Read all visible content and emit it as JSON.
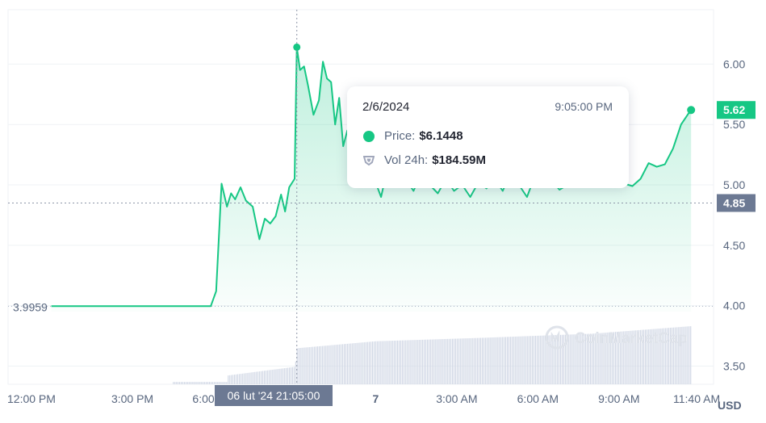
{
  "chart_data": {
    "type": "area",
    "currency_label": "USD",
    "y_ticks": [
      "3.50",
      "4.00",
      "4.50",
      "5.00",
      "5.50",
      "6.00"
    ],
    "y_tick_values": [
      3.5,
      4.0,
      4.5,
      5.0,
      5.5,
      6.0
    ],
    "ylim": [
      3.35,
      6.45
    ],
    "x_ticks": [
      "12:00 PM",
      "3:00 PM",
      "6:00 PM",
      "7",
      "3:00 AM",
      "6:00 AM",
      "9:00 AM",
      "11:40 AM"
    ],
    "x_tick_hours": [
      12,
      15,
      18,
      24,
      27,
      30,
      33,
      35.67
    ],
    "xlim_hours": [
      10.4,
      36.5
    ],
    "open_price_label": "3.9959",
    "open_price": 3.9959,
    "current_price_label": "5.62",
    "current_price": 5.62,
    "crosshair_price_label": "4.85",
    "crosshair_price": 4.85,
    "crosshair_time_label": "06 lut '24   21:05:00",
    "crosshair_hour": 21.083,
    "price_series": {
      "name": "Price",
      "x_hours": [
        12.0,
        17.9,
        18.1,
        18.3,
        18.5,
        18.65,
        18.8,
        19.0,
        19.2,
        19.45,
        19.7,
        19.9,
        20.1,
        20.3,
        20.5,
        20.65,
        20.8,
        21.0,
        21.083,
        21.2,
        21.35,
        21.5,
        21.7,
        21.9,
        22.05,
        22.2,
        22.35,
        22.5,
        22.65,
        22.8,
        22.95,
        23.1,
        23.3,
        23.6,
        23.9,
        24.2,
        24.5,
        24.8,
        25.1,
        25.4,
        25.7,
        26.0,
        26.3,
        26.6,
        26.9,
        27.2,
        27.5,
        27.8,
        28.1,
        28.4,
        28.7,
        29.0,
        29.3,
        29.6,
        29.9,
        30.2,
        30.5,
        30.8,
        31.1,
        31.4,
        31.7,
        32.0,
        32.3,
        32.6,
        32.9,
        33.2,
        33.5,
        33.8,
        34.1,
        34.4,
        34.7,
        35.0,
        35.3,
        35.6,
        35.67
      ],
      "values": [
        3.9959,
        3.9959,
        4.12,
        5.01,
        4.82,
        4.93,
        4.88,
        4.98,
        4.87,
        4.82,
        4.55,
        4.72,
        4.68,
        4.74,
        4.92,
        4.78,
        4.98,
        5.05,
        6.14,
        5.95,
        5.98,
        5.82,
        5.58,
        5.7,
        6.02,
        5.88,
        5.85,
        5.5,
        5.72,
        5.32,
        5.45,
        5.24,
        5.28,
        5.17,
        5.08,
        4.9,
        5.2,
        5.15,
        5.05,
        4.95,
        5.1,
        5.0,
        4.93,
        5.05,
        4.95,
        5.0,
        4.9,
        5.02,
        4.97,
        5.05,
        4.95,
        5.1,
        5.0,
        4.9,
        5.08,
        5.0,
        5.04,
        4.96,
        5.0,
        5.06,
        4.98,
        5.0,
        5.1,
        5.03,
        5.02,
        5.01,
        4.99,
        5.05,
        5.18,
        5.15,
        5.17,
        5.3,
        5.5,
        5.6,
        5.62
      ]
    },
    "volume_series": {
      "name": "Vol 24h",
      "x_hours": [
        18.5,
        21.0,
        21.083,
        24.0,
        28.0,
        32.0,
        35.67
      ],
      "values": [
        0.15,
        0.3,
        0.62,
        0.74,
        0.8,
        0.87,
        1.0
      ]
    },
    "tooltip": {
      "date": "2/6/2024",
      "time": "9:05:00 PM",
      "price_label": "Price:",
      "price_value": "$6.1448",
      "volume_label": "Vol 24h:",
      "volume_value": "$184.59M"
    },
    "watermark": "CoinMarketCap",
    "colors": {
      "line": "#16c784",
      "fill_top": "#16c784",
      "volume_bar": "#cfd6e4",
      "grid": "#eff2f5",
      "current_badge": "#16c784",
      "crosshair_badge": "#6c7993",
      "text": "#58667e"
    },
    "grid": true
  }
}
